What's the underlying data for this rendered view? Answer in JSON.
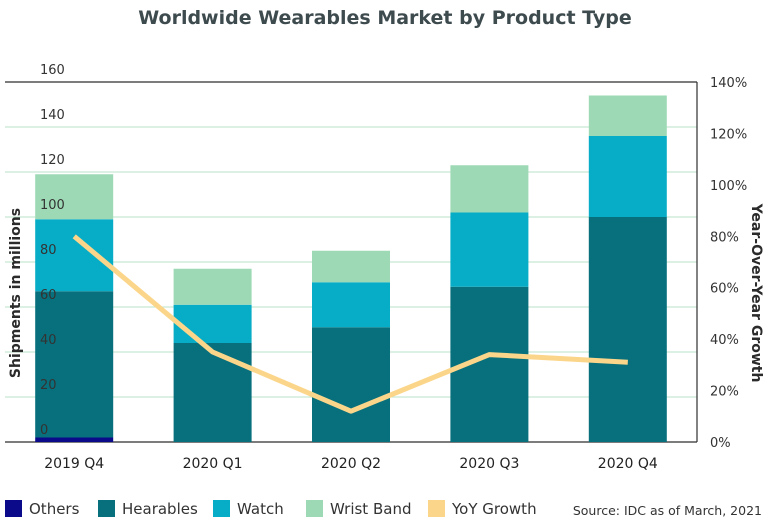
{
  "chart_data": {
    "type": "bar",
    "stacked": true,
    "title": "Worldwide Wearables Market by Product Type",
    "categories": [
      "2019 Q4",
      "2020 Q1",
      "2020 Q2",
      "2020 Q3",
      "2020 Q4"
    ],
    "ylabel": "Shipments in millions",
    "y2label": "Year-Over-Year Growth",
    "ylim": [
      0,
      160
    ],
    "y2lim": [
      0,
      1.4
    ],
    "yticks": [
      "0",
      "20",
      "40",
      "60",
      "80",
      "100",
      "120",
      "140",
      "160"
    ],
    "y2ticks": [
      "0%",
      "20%",
      "40%",
      "60%",
      "80%",
      "100%",
      "120%",
      "140%"
    ],
    "grid": true,
    "legend_position": "bottom-left",
    "series": [
      {
        "name": "Others",
        "color": "#0a0a8a",
        "values": [
          2,
          0,
          0,
          0,
          0
        ]
      },
      {
        "name": "Hearables",
        "color": "#08707c",
        "values": [
          65,
          44,
          51,
          69,
          100
        ]
      },
      {
        "name": "Watch",
        "color": "#07adc6",
        "values": [
          32,
          17,
          20,
          33,
          36
        ]
      },
      {
        "name": "Wrist Band",
        "color": "#9ed9b5",
        "values": [
          20,
          16,
          14,
          21,
          18
        ]
      }
    ],
    "line_series": {
      "name": "YoY Growth",
      "color": "#fbd68a",
      "axis": "right",
      "values": [
        0.8,
        0.35,
        0.12,
        0.34,
        0.31
      ]
    },
    "source": "Source: IDC as of March, 2021"
  }
}
